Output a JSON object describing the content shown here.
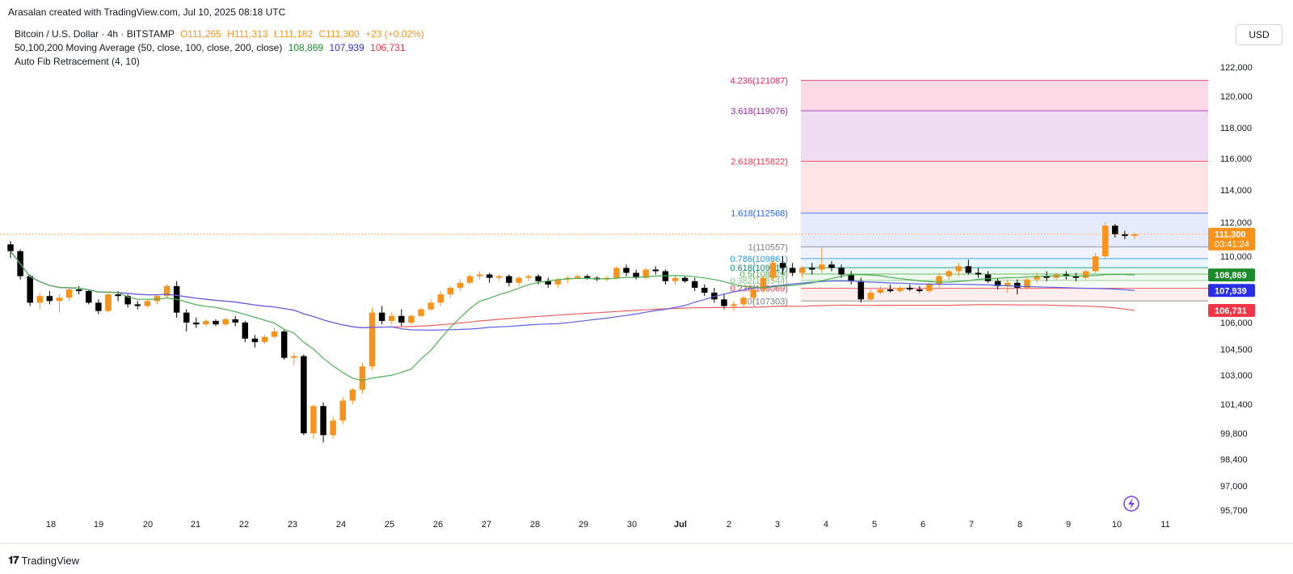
{
  "credit": "Arasalan created with TradingView.com, Jul 10, 2025 08:18 UTC",
  "legend": {
    "symbol": "Bitcoin / U.S. Dollar · 4h · BITSTAMP",
    "o": "O111,265",
    "h": "H111,313",
    "l": "L111,182",
    "c": "C111,300",
    "chg": "+23 (+0.02%)",
    "ma_label": "50,100,200 Moving Average (50, close, 100, close, 200, close)",
    "ma50": "108,869",
    "ma100": "107,939",
    "ma200": "106,731",
    "fib_label": "Auto Fib Retracement (4, 10)"
  },
  "currency_button": "USD",
  "brand": "TradingView",
  "colors": {
    "up": "#f7931a",
    "down": "#000000",
    "ma50": "#4caf50",
    "ma100": "#5b5fe8",
    "ma200": "#f06060"
  },
  "chart_data": {
    "type": "candlestick",
    "timeframe": "4h",
    "y_ticks": [
      "122,000",
      "120,000",
      "118,000",
      "116,000",
      "114,000",
      "112,000",
      "110,000",
      "108,000",
      "106,000",
      "104,500",
      "103,000",
      "101,400",
      "99,800",
      "98,400",
      "97,000",
      "95,700"
    ],
    "x_ticks": [
      "18",
      "19",
      "20",
      "21",
      "22",
      "23",
      "24",
      "25",
      "26",
      "27",
      "28",
      "29",
      "30",
      "Jul",
      "2",
      "3",
      "4",
      "5",
      "6",
      "7",
      "8",
      "9",
      "10",
      "11"
    ],
    "last_price": "111,300",
    "countdown": "03:41:24",
    "ma_badges": [
      {
        "name": "ma50",
        "value": "108,869",
        "price": 108869,
        "color": "#1b8a2a"
      },
      {
        "name": "ma100",
        "value": "107,939",
        "price": 107939,
        "color": "#2a2ee6"
      },
      {
        "name": "ma200",
        "value": "106,731",
        "price": 106731,
        "color": "#f23645"
      }
    ],
    "fib_levels": [
      {
        "label": "4.236(121087)",
        "price": 121087,
        "color": "#e91e63"
      },
      {
        "label": "3.618(119076)",
        "price": 119076,
        "color": "#9c27b0"
      },
      {
        "label": "2.618(115822)",
        "price": 115822,
        "color": "#f23645"
      },
      {
        "label": "1.618(112568)",
        "price": 112568,
        "color": "#2962ff"
      },
      {
        "label": "1(110557)",
        "price": 110557,
        "color": "#787b86"
      },
      {
        "label": "0.786(109861)",
        "price": 109861,
        "color": "#2196f3"
      },
      {
        "label": "0.618(109314)",
        "price": 109314,
        "color": "#00897b"
      },
      {
        "label": "0.5(108929)",
        "price": 108929,
        "color": "#4caf50"
      },
      {
        "label": "0.382(108544)",
        "price": 108544,
        "color": "#81c784"
      },
      {
        "label": "0.236(108069)",
        "price": 108069,
        "color": "#f23645"
      },
      {
        "label": "0(107303)",
        "price": 107303,
        "color": "#787b86"
      }
    ],
    "candles": [
      [
        110700,
        110900,
        109900,
        110300
      ],
      [
        110300,
        110400,
        108600,
        108800
      ],
      [
        108800,
        108900,
        107000,
        107200
      ],
      [
        107200,
        107800,
        106800,
        107600
      ],
      [
        107600,
        107900,
        107100,
        107300
      ],
      [
        107300,
        107700,
        106600,
        107500
      ],
      [
        107500,
        108100,
        107300,
        108000
      ],
      [
        108000,
        108200,
        107700,
        107900
      ],
      [
        107900,
        108000,
        107100,
        107200
      ],
      [
        107200,
        107400,
        106500,
        106700
      ],
      [
        106700,
        107800,
        106600,
        107700
      ],
      [
        107700,
        107900,
        107300,
        107600
      ],
      [
        107600,
        107700,
        106900,
        107100
      ],
      [
        107100,
        107300,
        106800,
        107000
      ],
      [
        107000,
        107400,
        106900,
        107300
      ],
      [
        107300,
        107700,
        107100,
        107600
      ],
      [
        107600,
        108300,
        107500,
        108200
      ],
      [
        108200,
        108500,
        106300,
        106600
      ],
      [
        106600,
        106800,
        105500,
        106000
      ],
      [
        106000,
        106300,
        105700,
        105900
      ],
      [
        105900,
        106200,
        105800,
        106100
      ],
      [
        106100,
        106200,
        105800,
        105900
      ],
      [
        105900,
        106300,
        105800,
        106200
      ],
      [
        106200,
        106400,
        105800,
        106000
      ],
      [
        106000,
        106100,
        104900,
        105100
      ],
      [
        105100,
        105300,
        104600,
        104900
      ],
      [
        104900,
        105300,
        104800,
        105200
      ],
      [
        105200,
        105700,
        105100,
        105500
      ],
      [
        105500,
        105600,
        103900,
        104000
      ],
      [
        104000,
        104300,
        103600,
        104100
      ],
      [
        104100,
        104200,
        99700,
        99800
      ],
      [
        99800,
        101400,
        99500,
        101300
      ],
      [
        101300,
        101500,
        99300,
        99700
      ],
      [
        99700,
        100700,
        99500,
        100500
      ],
      [
        100500,
        101800,
        100300,
        101600
      ],
      [
        101600,
        102300,
        101400,
        102200
      ],
      [
        102200,
        103700,
        102000,
        103500
      ],
      [
        103500,
        106900,
        103300,
        106600
      ],
      [
        106600,
        107000,
        105900,
        106100
      ],
      [
        106100,
        106600,
        105900,
        106400
      ],
      [
        106400,
        106800,
        105800,
        106000
      ],
      [
        106000,
        106500,
        105900,
        106400
      ],
      [
        106400,
        106900,
        106300,
        106800
      ],
      [
        106800,
        107400,
        106700,
        107200
      ],
      [
        107200,
        107900,
        107000,
        107700
      ],
      [
        107700,
        108200,
        107500,
        108100
      ],
      [
        108100,
        108600,
        107900,
        108400
      ],
      [
        108400,
        108900,
        108300,
        108800
      ],
      [
        108800,
        109100,
        108600,
        108900
      ],
      [
        108900,
        109000,
        108400,
        108700
      ],
      [
        108700,
        108900,
        108500,
        108800
      ],
      [
        108800,
        108900,
        108200,
        108400
      ],
      [
        108400,
        108800,
        108200,
        108700
      ],
      [
        108700,
        108900,
        108500,
        108800
      ],
      [
        108800,
        108900,
        108300,
        108500
      ],
      [
        108500,
        108700,
        108100,
        108300
      ],
      [
        108300,
        108700,
        108100,
        108600
      ],
      [
        108600,
        108800,
        108400,
        108700
      ],
      [
        108700,
        108900,
        108600,
        108800
      ],
      [
        108800,
        108900,
        108600,
        108700
      ],
      [
        108700,
        108800,
        108500,
        108600
      ],
      [
        108600,
        108800,
        108500,
        108700
      ],
      [
        108700,
        109400,
        108600,
        109300
      ],
      [
        109300,
        109500,
        108800,
        109000
      ],
      [
        109000,
        109200,
        108600,
        108700
      ],
      [
        108700,
        109300,
        108600,
        109200
      ],
      [
        109200,
        109400,
        108900,
        109100
      ],
      [
        109100,
        109200,
        108300,
        108500
      ],
      [
        108500,
        108800,
        108300,
        108700
      ],
      [
        108700,
        108800,
        108400,
        108500
      ],
      [
        108500,
        108700,
        107900,
        108100
      ],
      [
        108100,
        108300,
        107600,
        107800
      ],
      [
        107800,
        108100,
        107200,
        107400
      ],
      [
        107400,
        107700,
        106800,
        107000
      ],
      [
        107000,
        107300,
        106700,
        107100
      ],
      [
        107100,
        107600,
        106900,
        107500
      ],
      [
        107500,
        108100,
        107300,
        108000
      ],
      [
        108000,
        108800,
        107800,
        108700
      ],
      [
        108700,
        109800,
        108500,
        109600
      ],
      [
        109600,
        110000,
        108900,
        109300
      ],
      [
        109300,
        109600,
        108800,
        109000
      ],
      [
        109000,
        109400,
        108700,
        109300
      ],
      [
        109300,
        109600,
        108900,
        109200
      ],
      [
        109200,
        110500,
        109000,
        109500
      ],
      [
        109500,
        109700,
        109100,
        109300
      ],
      [
        109300,
        109500,
        108700,
        108900
      ],
      [
        108900,
        109100,
        108300,
        108500
      ],
      [
        108500,
        108700,
        107200,
        107400
      ],
      [
        107400,
        108000,
        107300,
        107800
      ],
      [
        107800,
        108200,
        107700,
        108000
      ],
      [
        108000,
        108300,
        107800,
        107900
      ],
      [
        107900,
        108200,
        107800,
        108100
      ],
      [
        108100,
        108300,
        107900,
        108000
      ],
      [
        108000,
        108200,
        107800,
        107900
      ],
      [
        107900,
        108400,
        107800,
        108300
      ],
      [
        108300,
        109000,
        108100,
        108800
      ],
      [
        108800,
        109200,
        108600,
        109100
      ],
      [
        109100,
        109600,
        108800,
        109400
      ],
      [
        109400,
        109800,
        108900,
        109000
      ],
      [
        109000,
        109300,
        108700,
        108900
      ],
      [
        108900,
        109100,
        108400,
        108500
      ],
      [
        108500,
        108700,
        108000,
        108200
      ],
      [
        108200,
        108600,
        107800,
        108400
      ],
      [
        108400,
        108600,
        107700,
        108100
      ],
      [
        108100,
        108700,
        108000,
        108600
      ],
      [
        108600,
        109000,
        108400,
        108800
      ],
      [
        108800,
        109100,
        108500,
        108700
      ],
      [
        108700,
        109000,
        108600,
        108900
      ],
      [
        108900,
        109100,
        108600,
        108800
      ],
      [
        108800,
        109000,
        108500,
        108700
      ],
      [
        108700,
        109200,
        108600,
        109100
      ],
      [
        109100,
        110200,
        109000,
        110000
      ],
      [
        110000,
        112000,
        109800,
        111800
      ],
      [
        111800,
        111900,
        111100,
        111300
      ],
      [
        111300,
        111500,
        111000,
        111200
      ],
      [
        111200,
        111400,
        111000,
        111300
      ]
    ]
  }
}
